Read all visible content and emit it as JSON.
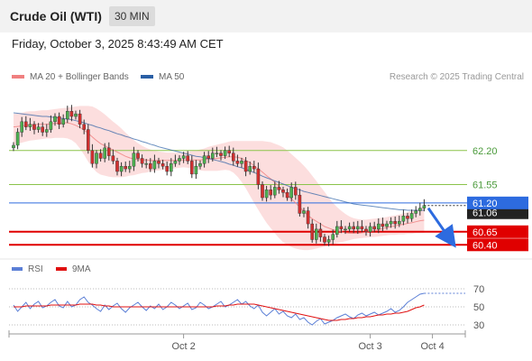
{
  "header": {
    "title": "Crude Oil (WTI)",
    "interval": "30 MIN"
  },
  "timestamp": "Friday, October 3, 2025 8:43:49 AM CET",
  "legend": {
    "bollinger": {
      "label": "MA 20 + Bollinger Bands",
      "color": "#f08080"
    },
    "ma50": {
      "label": "MA 50",
      "color": "#2a5fa5"
    },
    "rsi": {
      "label": "RSI",
      "color": "#5b7fd6"
    },
    "rsi_ma": {
      "label": "9MA",
      "color": "#e01010"
    }
  },
  "copyright": "Research © 2025 Trading Central",
  "chart_data": [
    {
      "type": "candlestick",
      "title": "",
      "ylim": [
        60.25,
        63.35
      ],
      "x_labels": [
        {
          "label": "Oct 2",
          "index": 41
        },
        {
          "label": "Oct 3",
          "index": 86
        },
        {
          "label": "Oct 4",
          "index": 101
        }
      ],
      "horizontal_levels": [
        {
          "value": 62.2,
          "label": "62.20",
          "color": "#8bc34a"
        },
        {
          "value": 61.55,
          "label": "61.55",
          "color": "#8bc34a"
        },
        {
          "value": 60.65,
          "label": "60.65",
          "color": "#e00000"
        },
        {
          "value": 60.4,
          "label": "60.40",
          "color": "#e00000"
        }
      ],
      "current_level": {
        "value": 61.2,
        "label": "61.20",
        "color": "#2d6bdf"
      },
      "last_price_label": "61.06",
      "forecast_arrow": {
        "from": [
          100,
          61.1
        ],
        "to": [
          106,
          60.4
        ],
        "color": "#2d6bdf"
      },
      "close": [
        62.3,
        62.55,
        62.75,
        62.65,
        62.7,
        62.6,
        62.65,
        62.55,
        62.6,
        62.75,
        62.85,
        62.7,
        62.8,
        62.95,
        62.85,
        62.9,
        62.7,
        62.6,
        62.2,
        61.95,
        62.15,
        62.05,
        62.25,
        62.1,
        62.0,
        61.8,
        61.9,
        61.85,
        61.9,
        62.15,
        62.05,
        61.95,
        61.95,
        61.85,
        62.0,
        61.95,
        61.9,
        61.8,
        61.95,
        62.0,
        62.05,
        62.1,
        62.0,
        61.75,
        61.9,
        61.95,
        62.1,
        62.05,
        62.15,
        62.15,
        62.1,
        62.2,
        62.15,
        62.0,
        61.95,
        62.0,
        61.8,
        61.9,
        61.85,
        61.55,
        61.3,
        61.45,
        61.35,
        61.5,
        61.45,
        61.4,
        61.3,
        61.5,
        61.35,
        61.0,
        61.05,
        60.8,
        60.5,
        60.7,
        60.55,
        60.45,
        60.5,
        60.6,
        60.75,
        60.7,
        60.7,
        60.75,
        60.7,
        60.75,
        60.7,
        60.65,
        60.75,
        60.7,
        60.8,
        60.75,
        60.8,
        60.85,
        60.8,
        60.85,
        60.95,
        60.9,
        61.0,
        61.05,
        61.1,
        61.15
      ],
      "ma20": [
        62.65,
        62.66,
        62.67,
        62.68,
        62.69,
        62.69,
        62.7,
        62.7,
        62.7,
        62.71,
        62.72,
        62.72,
        62.73,
        62.73,
        62.71,
        62.68,
        62.64,
        62.59,
        62.53,
        62.46,
        62.39,
        62.33,
        62.29,
        62.25,
        62.21,
        62.17,
        62.13,
        62.09,
        62.06,
        62.04,
        62.03,
        62.02,
        62.02,
        62.01,
        62.01,
        62.01,
        62.01,
        62.01,
        62.01,
        62.01,
        62.02,
        62.02,
        62.02,
        62.02,
        62.02,
        62.02,
        62.03,
        62.04,
        62.04,
        62.05,
        62.06,
        62.07,
        62.08,
        62.08,
        62.07,
        62.05,
        62.01,
        61.97,
        61.91,
        61.85,
        61.79,
        61.72,
        61.66,
        61.59,
        61.51,
        61.43,
        61.35,
        61.28,
        61.2,
        61.12,
        61.04,
        60.96,
        60.9,
        60.85,
        60.8,
        60.75,
        60.72,
        60.69,
        60.67,
        60.65,
        60.63,
        60.62,
        60.62,
        60.62,
        60.63,
        60.64,
        60.66,
        60.67,
        60.69,
        60.71,
        60.73,
        60.75,
        60.76,
        60.78,
        60.79,
        60.81,
        60.82,
        60.84,
        60.86,
        60.87
      ],
      "bb_upper": [
        62.9,
        62.91,
        62.92,
        62.94,
        62.95,
        62.95,
        62.96,
        62.97,
        62.97,
        62.98,
        62.99,
        63.0,
        63.01,
        63.02,
        63.03,
        63.04,
        63.05,
        63.05,
        63.05,
        63.04,
        63.0,
        62.95,
        62.89,
        62.82,
        62.75,
        62.69,
        62.62,
        62.54,
        62.47,
        62.4,
        62.34,
        62.29,
        62.25,
        62.22,
        62.2,
        62.18,
        62.17,
        62.16,
        62.16,
        62.16,
        62.16,
        62.17,
        62.18,
        62.19,
        62.2,
        62.22,
        62.24,
        62.27,
        62.29,
        62.31,
        62.33,
        62.35,
        62.37,
        62.38,
        62.38,
        62.38,
        62.38,
        62.38,
        62.38,
        62.38,
        62.38,
        62.37,
        62.36,
        62.33,
        62.3,
        62.26,
        62.2,
        62.13,
        62.06,
        61.99,
        61.91,
        61.82,
        61.72,
        61.62,
        61.51,
        61.41,
        61.3,
        61.2,
        61.12,
        61.05,
        60.99,
        60.94,
        60.91,
        60.89,
        60.88,
        60.88,
        60.89,
        60.9,
        60.91,
        60.92,
        60.93,
        60.95,
        60.96,
        60.98,
        61.0,
        61.02,
        61.05,
        61.07,
        61.1,
        61.12
      ],
      "bb_lower": [
        62.3,
        62.33,
        62.35,
        62.37,
        62.39,
        62.4,
        62.41,
        62.42,
        62.43,
        62.43,
        62.44,
        62.44,
        62.44,
        62.43,
        62.4,
        62.34,
        62.24,
        62.12,
        61.99,
        61.88,
        61.79,
        61.74,
        61.72,
        61.7,
        61.69,
        61.69,
        61.69,
        61.7,
        61.72,
        61.73,
        61.75,
        61.77,
        61.78,
        61.8,
        61.81,
        61.82,
        61.83,
        61.84,
        61.85,
        61.86,
        61.87,
        61.88,
        61.87,
        61.86,
        61.84,
        61.82,
        61.81,
        61.81,
        61.81,
        61.81,
        61.82,
        61.83,
        61.82,
        61.78,
        61.7,
        61.6,
        61.48,
        61.34,
        61.2,
        61.07,
        60.94,
        60.82,
        60.72,
        60.62,
        60.53,
        60.45,
        60.4,
        60.36,
        60.33,
        60.31,
        60.3,
        60.3,
        60.31,
        60.33,
        60.35,
        60.37,
        60.39,
        60.41,
        60.43,
        60.45,
        60.47,
        60.49,
        60.51,
        60.52,
        60.53,
        60.54,
        60.55,
        60.55,
        60.56,
        60.57,
        60.58,
        60.59,
        60.59,
        60.6,
        60.6,
        60.61,
        60.61,
        60.62,
        60.62,
        60.63
      ],
      "ma50": [
        62.92,
        62.91,
        62.9,
        62.89,
        62.88,
        62.87,
        62.86,
        62.85,
        62.85,
        62.84,
        62.83,
        62.82,
        62.81,
        62.8,
        62.79,
        62.77,
        62.75,
        62.73,
        62.7,
        62.68,
        62.65,
        62.63,
        62.6,
        62.58,
        62.55,
        62.52,
        62.5,
        62.47,
        62.45,
        62.42,
        62.4,
        62.37,
        62.35,
        62.32,
        62.3,
        62.27,
        62.25,
        62.23,
        62.21,
        62.19,
        62.17,
        62.15,
        62.13,
        62.11,
        62.09,
        62.08,
        62.06,
        62.05,
        62.03,
        62.01,
        61.99,
        61.97,
        61.94,
        61.92,
        61.89,
        61.87,
        61.84,
        61.81,
        61.78,
        61.75,
        61.71,
        61.68,
        61.65,
        61.62,
        61.59,
        61.56,
        61.53,
        61.5,
        61.47,
        61.45,
        61.42,
        61.4,
        61.38,
        61.36,
        61.34,
        61.32,
        61.3,
        61.28,
        61.26,
        61.24,
        61.22,
        61.2,
        61.18,
        61.17,
        61.16,
        61.15,
        61.14,
        61.13,
        61.12,
        61.11,
        61.1,
        61.09,
        61.08,
        61.07,
        61.07,
        61.06,
        61.06,
        61.06,
        61.06,
        61.06
      ]
    },
    {
      "type": "line",
      "title": "",
      "ylim": [
        20,
        80
      ],
      "y_ticks": [
        70,
        50,
        30
      ],
      "series": [
        {
          "name": "RSI",
          "color": "#5b7fd6",
          "values": [
            52,
            45,
            50,
            55,
            48,
            53,
            56,
            49,
            51,
            55,
            58,
            51,
            49,
            56,
            50,
            52,
            58,
            61,
            55,
            52,
            48,
            45,
            52,
            47,
            51,
            54,
            48,
            44,
            49,
            52,
            55,
            50,
            46,
            51,
            48,
            53,
            47,
            50,
            55,
            52,
            48,
            51,
            54,
            47,
            49,
            55,
            52,
            48,
            50,
            53,
            56,
            50,
            52,
            55,
            58,
            53,
            56,
            51,
            48,
            52,
            44,
            40,
            44,
            48,
            42,
            45,
            40,
            38,
            42,
            36,
            38,
            33,
            30,
            34,
            37,
            31,
            33,
            35,
            38,
            40,
            42,
            39,
            37,
            41,
            43,
            40,
            42,
            44,
            41,
            43,
            45,
            48,
            44,
            46,
            50,
            55,
            58,
            61,
            64,
            65
          ]
        },
        {
          "name": "9MA",
          "color": "#e01010",
          "values": [
            50,
            50,
            50,
            51,
            51,
            51,
            51,
            51,
            51,
            52,
            52,
            52,
            52,
            52,
            52,
            52,
            53,
            53,
            53,
            53,
            52,
            52,
            51,
            51,
            50,
            50,
            50,
            50,
            50,
            50,
            50,
            50,
            50,
            50,
            50,
            50,
            50,
            50,
            50,
            50,
            50,
            50,
            50,
            50,
            50,
            50,
            50,
            50,
            50,
            51,
            51,
            51,
            52,
            52,
            53,
            53,
            53,
            53,
            53,
            52,
            51,
            50,
            49,
            48,
            47,
            46,
            45,
            44,
            43,
            42,
            41,
            40,
            39,
            38,
            37,
            36,
            35,
            35,
            35,
            36,
            36,
            37,
            37,
            38,
            38,
            39,
            39,
            40,
            41,
            41,
            42,
            42,
            43,
            43,
            44,
            45,
            47,
            49,
            50,
            52
          ]
        }
      ],
      "projection": {
        "value": 65,
        "color": "#5b7fd6"
      }
    }
  ]
}
